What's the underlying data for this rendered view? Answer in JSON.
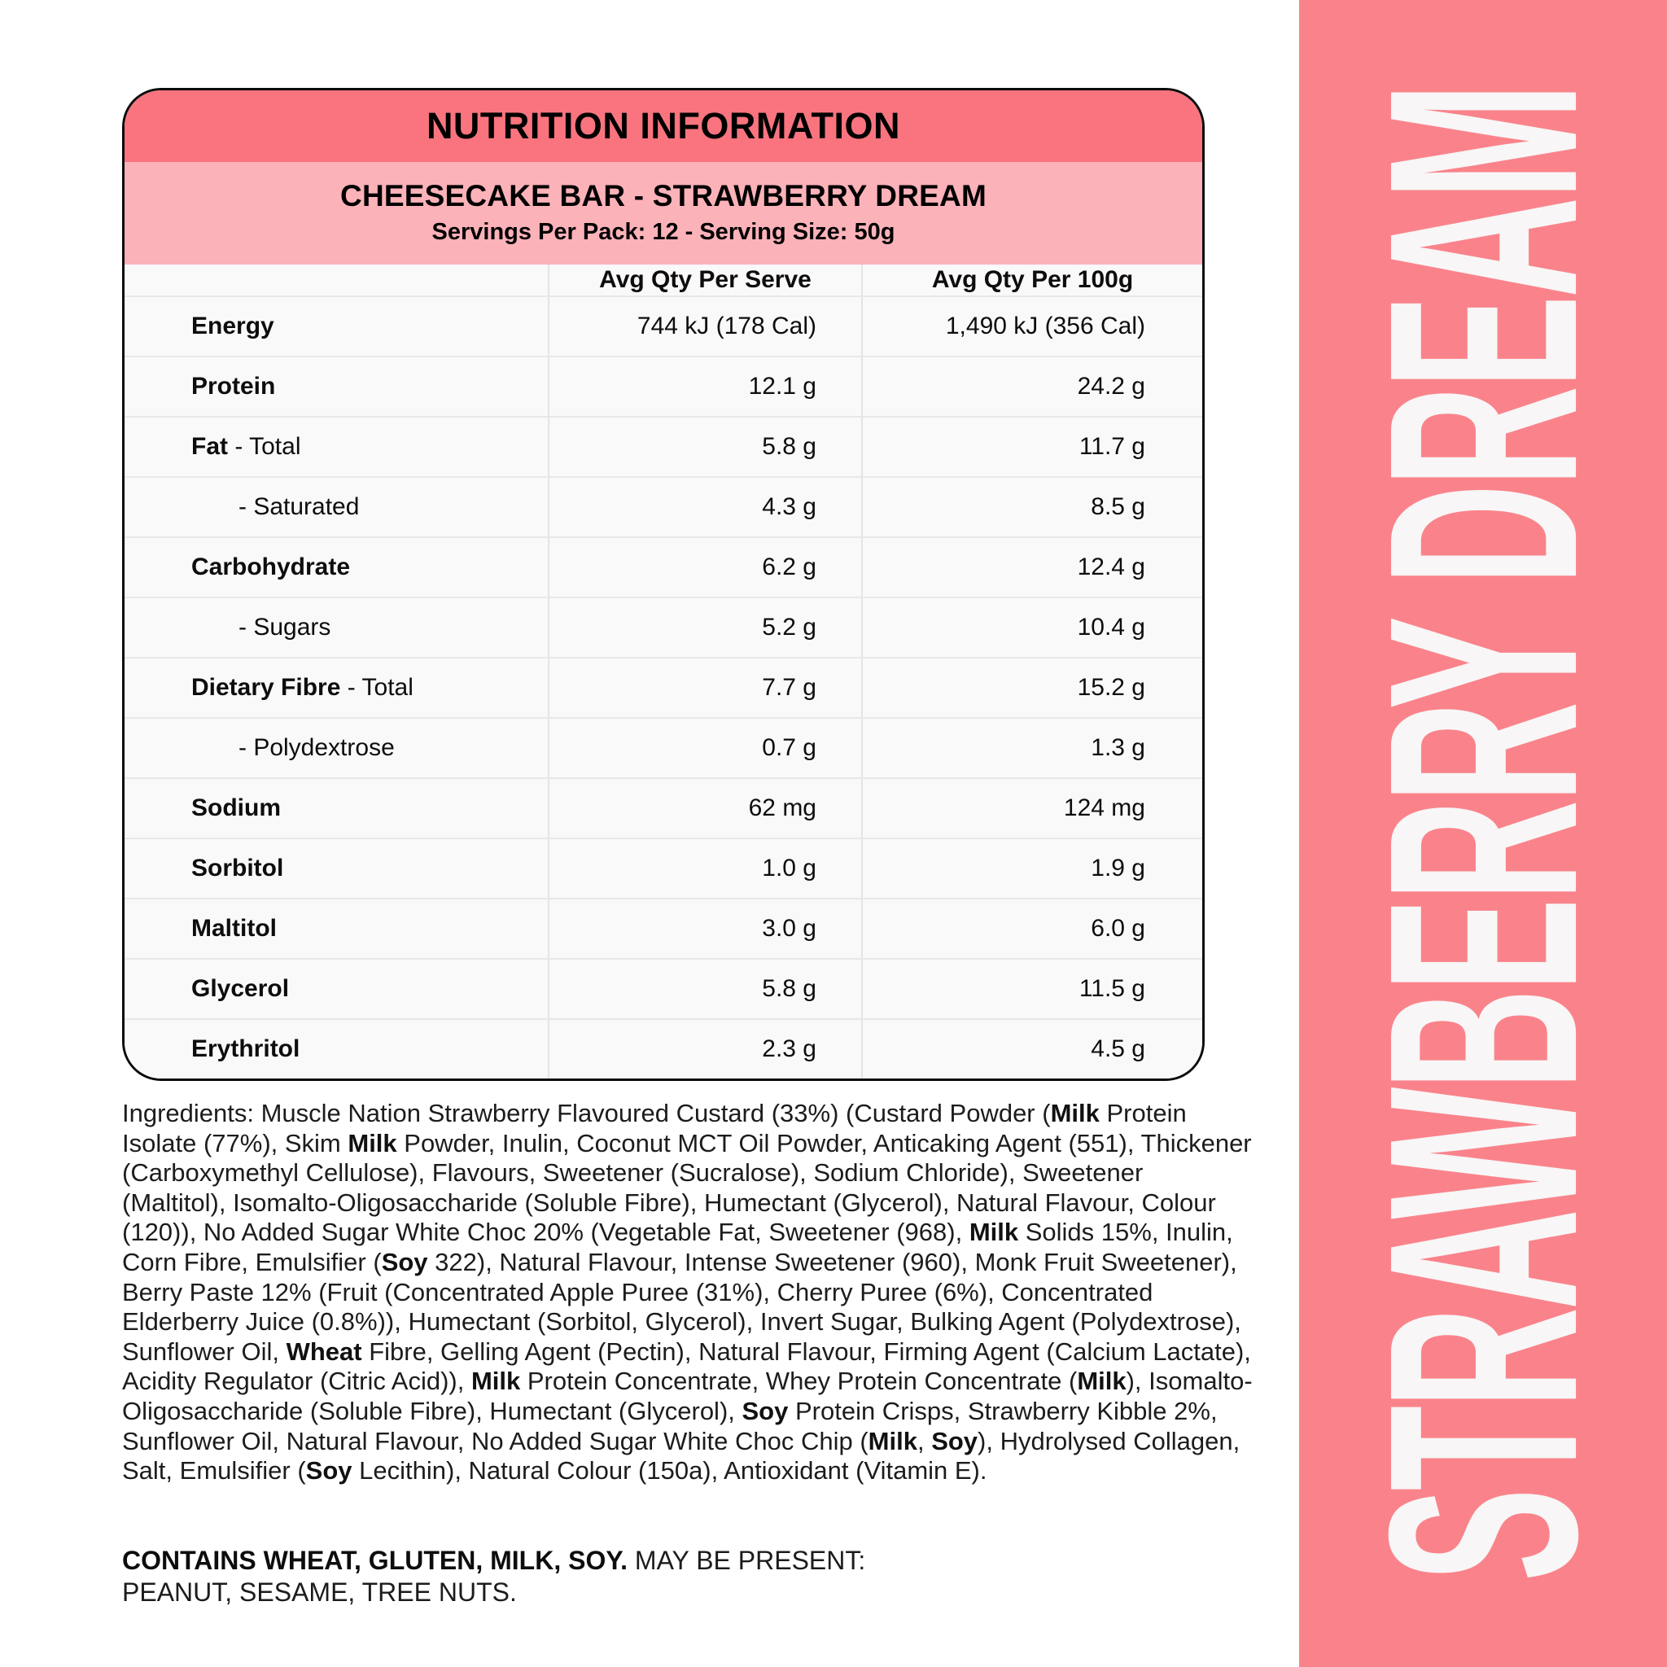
{
  "panel": {
    "header_title": "NUTRITION INFORMATION",
    "product_name": "CHEESECAKE BAR - STRAWBERRY DREAM",
    "serving_info": "Servings Per Pack: 12 - Serving Size: 50g",
    "col_serve": "Avg Qty Per Serve",
    "col_100g": "Avg Qty Per 100g",
    "rows": [
      {
        "bold": "Energy",
        "rest": "",
        "indent": false,
        "serve": "744 kJ (178 Cal)",
        "per100": "1,490 kJ (356 Cal)"
      },
      {
        "bold": "Protein",
        "rest": "",
        "indent": false,
        "serve": "12.1 g",
        "per100": "24.2 g"
      },
      {
        "bold": "Fat",
        "rest": " - Total",
        "indent": false,
        "serve": "5.8 g",
        "per100": "11.7 g"
      },
      {
        "bold": "",
        "rest": "- Saturated",
        "indent": true,
        "serve": "4.3 g",
        "per100": "8.5 g"
      },
      {
        "bold": "Carbohydrate",
        "rest": "",
        "indent": false,
        "serve": "6.2 g",
        "per100": "12.4 g"
      },
      {
        "bold": "",
        "rest": "- Sugars",
        "indent": true,
        "serve": "5.2 g",
        "per100": "10.4 g"
      },
      {
        "bold": "Dietary Fibre",
        "rest": " - Total",
        "indent": false,
        "serve": "7.7 g",
        "per100": "15.2 g"
      },
      {
        "bold": "",
        "rest": "- Polydextrose",
        "indent": true,
        "serve": "0.7 g",
        "per100": "1.3 g"
      },
      {
        "bold": "Sodium",
        "rest": "",
        "indent": false,
        "serve": "62 mg",
        "per100": "124 mg"
      },
      {
        "bold": "Sorbitol",
        "rest": "",
        "indent": false,
        "serve": "1.0 g",
        "per100": "1.9 g"
      },
      {
        "bold": "Maltitol",
        "rest": "",
        "indent": false,
        "serve": "3.0 g",
        "per100": "6.0 g"
      },
      {
        "bold": "Glycerol",
        "rest": "",
        "indent": false,
        "serve": "5.8 g",
        "per100": "11.5 g"
      },
      {
        "bold": "Erythritol",
        "rest": "",
        "indent": false,
        "serve": "2.3 g",
        "per100": "4.5 g"
      }
    ]
  },
  "ingredients": {
    "segments": [
      {
        "t": "Ingredients: Muscle Nation Strawberry Flavoured Custard (33%) (Custard Powder (",
        "b": false
      },
      {
        "t": "Milk",
        "b": true
      },
      {
        "t": " Protein Isolate (77%), Skim ",
        "b": false
      },
      {
        "t": "Milk",
        "b": true
      },
      {
        "t": " Powder, Inulin, Coconut MCT Oil Powder, Anticaking Agent (551), Thickener (Carboxymethyl Cellulose), Flavours, Sweetener (Sucralose), Sodium Chloride), Sweetener (Maltitol), Isomalto-Oligosaccharide (Soluble Fibre), Humectant (Glycerol), Natural Flavour, Colour (120)), No Added Sugar White Choc 20% (Vegetable Fat, Sweetener (968), ",
        "b": false
      },
      {
        "t": "Milk",
        "b": true
      },
      {
        "t": " Solids 15%, Inulin, Corn Fibre, Emulsifier (",
        "b": false
      },
      {
        "t": "Soy",
        "b": true
      },
      {
        "t": " 322), Natural Flavour, Intense Sweetener (960), Monk Fruit Sweetener), Berry Paste 12% (Fruit (Concentrated Apple Puree (31%), Cherry Puree (6%), Concentrated Elderberry Juice (0.8%)), Humectant (Sorbitol, Glycerol), Invert Sugar, Bulking Agent (Polydextrose), Sunflower Oil, ",
        "b": false
      },
      {
        "t": "Wheat",
        "b": true
      },
      {
        "t": " Fibre, Gelling Agent (Pectin), Natural Flavour, Firming Agent (Calcium Lactate), Acidity Regulator (Citric Acid)), ",
        "b": false
      },
      {
        "t": "Milk",
        "b": true
      },
      {
        "t": " Protein Concentrate, Whey Protein Concentrate (",
        "b": false
      },
      {
        "t": "Milk",
        "b": true
      },
      {
        "t": "), Isomalto-Oligosaccharide (Soluble Fibre), Humectant (Glycerol), ",
        "b": false
      },
      {
        "t": "Soy",
        "b": true
      },
      {
        "t": " Protein Crisps, Strawberry Kibble 2%, Sunflower Oil, Natural Flavour, No Added Sugar White Choc Chip (",
        "b": false
      },
      {
        "t": "Milk",
        "b": true
      },
      {
        "t": ", ",
        "b": false
      },
      {
        "t": "Soy",
        "b": true
      },
      {
        "t": "), Hydrolysed Collagen, Salt, Emulsifier (",
        "b": false
      },
      {
        "t": "Soy",
        "b": true
      },
      {
        "t": " Lecithin), Natural Colour (150a), Antioxidant (Vitamin E).",
        "b": false
      }
    ]
  },
  "allergens": {
    "contains": "CONTAINS WHEAT, GLUTEN, MILK, SOY.",
    "may_be_present": " MAY BE PRESENT: PEANUT, SESAME, TREE NUTS."
  },
  "sidebar": {
    "label": "STRAWBERRY DREAM"
  },
  "colors": {
    "header_band": "#f9747e",
    "sub_band": "#fcb2b9",
    "sidebar": "#fa838b",
    "sidebar_text": "#f8f6f6",
    "row_bg": "#f9f9fa",
    "row_border": "#e8e8ea"
  }
}
